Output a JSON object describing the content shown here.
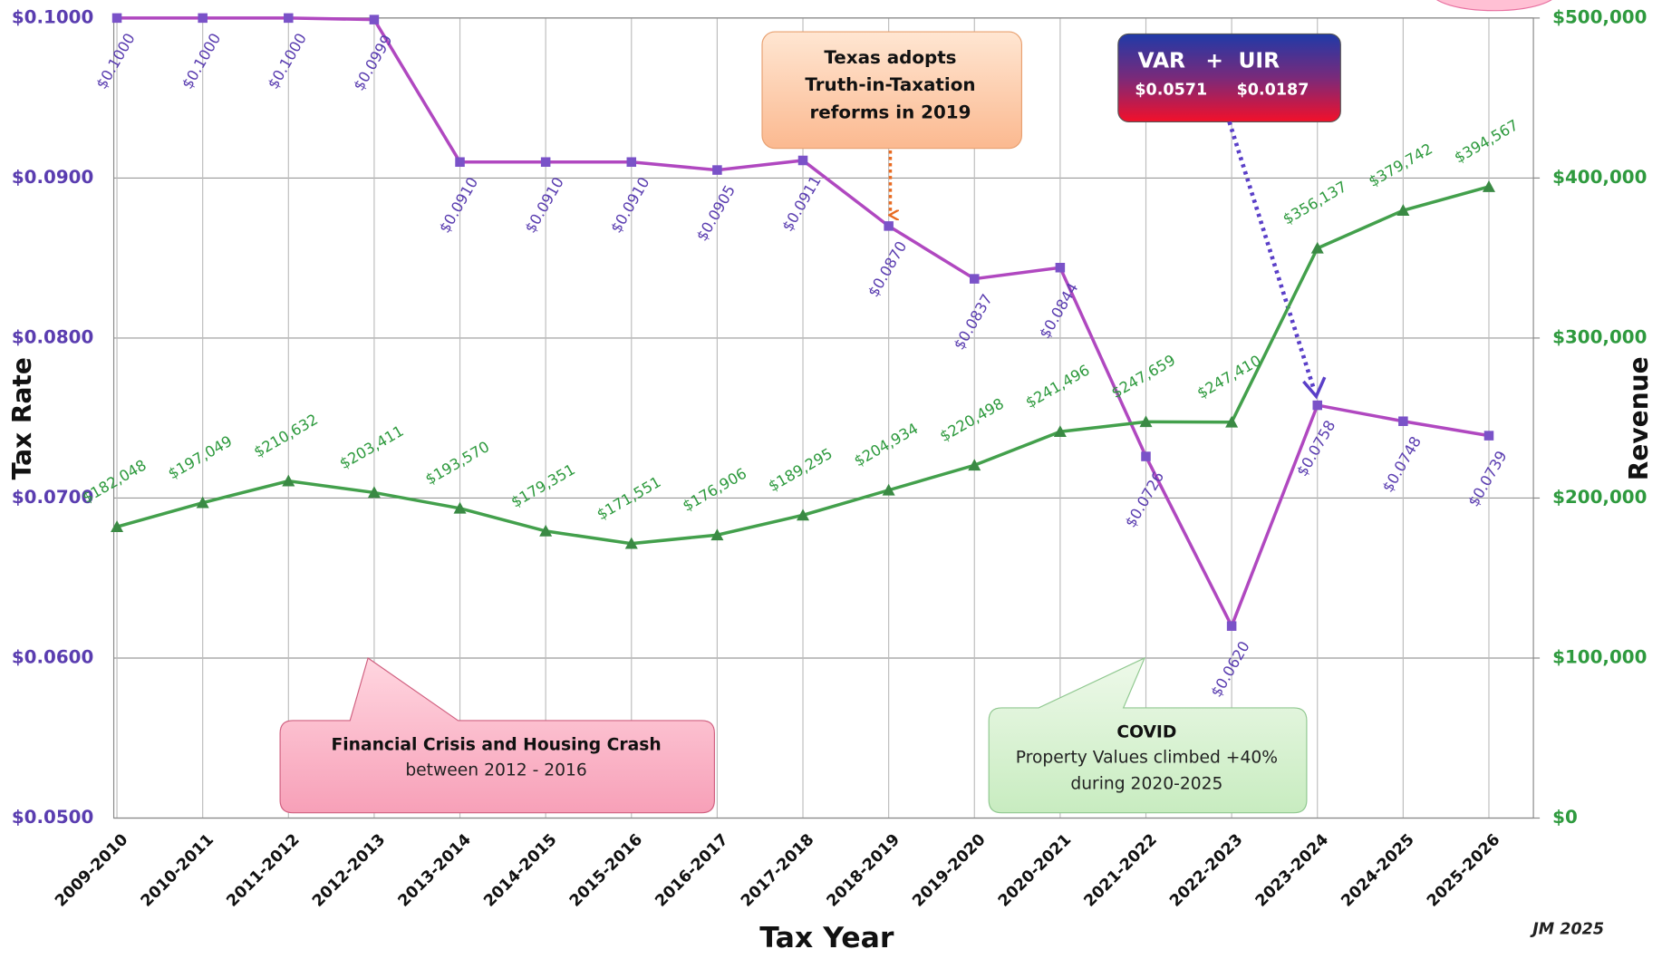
{
  "chart_data": {
    "type": "line",
    "categories": [
      "2009-2010",
      "2010-2011",
      "2011-2012",
      "2012-2013",
      "2013-2014",
      "2014-2015",
      "2015-2016",
      "2016-2017",
      "2017-2018",
      "2018-2019",
      "2019-2020",
      "2020-2021",
      "2021-2022",
      "2022-2023",
      "2023-2024",
      "2024-2025",
      "2025-2026"
    ],
    "series": [
      {
        "name": "Tax Rate",
        "color": "#b048c0",
        "marker_color": "#7a52c8",
        "label_color": "#5a3db0",
        "marker": "square",
        "values": [
          0.1,
          0.1,
          0.1,
          0.0999,
          0.091,
          0.091,
          0.091,
          0.0905,
          0.0911,
          0.087,
          0.0837,
          0.0844,
          0.0726,
          0.062,
          0.0758,
          0.0748,
          0.0739
        ],
        "value_labels": [
          "$0.1000",
          "$0.1000",
          "$0.1000",
          "$0.0999",
          "$0.0910",
          "$0.0910",
          "$0.0910",
          "$0.0905",
          "$0.0911",
          "$0.0870",
          "$0.0837",
          "$0.0844",
          "$0.0726",
          "$0.0620",
          "$0.0758",
          "$0.0748",
          "$0.0739"
        ]
      },
      {
        "name": "Revenue",
        "color": "#43a04c",
        "marker_color": "#3a8a44",
        "label_color": "#2e9a3e",
        "marker": "triangle",
        "axis": "y2",
        "values": [
          182048,
          197049,
          210632,
          203411,
          193570,
          179351,
          171551,
          176906,
          189295,
          204934,
          220498,
          241496,
          247659,
          247410,
          356137,
          379742,
          394567
        ],
        "value_labels": [
          "$182,048",
          "$197,049",
          "$210,632",
          "$203,411",
          "$193,570",
          "$179,351",
          "$171,551",
          "$176,906",
          "$189,295",
          "$204,934",
          "$220,498",
          "$241,496",
          "$247,659",
          "$247,410",
          "$356,137",
          "$379,742",
          "$394,567"
        ]
      }
    ],
    "ylim": [
      0.05,
      0.1
    ],
    "yticks": [
      {
        "value": 0.05,
        "label": "$0.0500"
      },
      {
        "value": 0.06,
        "label": "$0.0600"
      },
      {
        "value": 0.07,
        "label": "$0.0700"
      },
      {
        "value": 0.08,
        "label": "$0.0800"
      },
      {
        "value": 0.09,
        "label": "$0.0900"
      },
      {
        "value": 0.1,
        "label": "$0.1000"
      }
    ],
    "y2lim": [
      0,
      500000
    ],
    "y2ticks": [
      {
        "value": 0,
        "label": "$0"
      },
      {
        "value": 100000,
        "label": "$100,000"
      },
      {
        "value": 200000,
        "label": "$200,000"
      },
      {
        "value": 300000,
        "label": "$300,000"
      },
      {
        "value": 400000,
        "label": "$400,000"
      },
      {
        "value": 500000,
        "label": "$500,000"
      }
    ],
    "xlabel": "Tax Year",
    "ylabel": "Tax Rate",
    "y2label": "Revenue",
    "grid": true,
    "credit": "JM 2025",
    "annotations": [
      {
        "lines": [
          "Texas adopts",
          "Truth-in-Taxation",
          "reforms in 2019"
        ]
      },
      {
        "lines": [
          "VAR",
          "+",
          "UIR",
          "$0.0571",
          "$0.0187"
        ]
      },
      {
        "lines": [
          "Financial Crisis and Housing Crash",
          "between 2012 - 2016"
        ]
      },
      {
        "lines": [
          "COVID",
          "Property Values climbed +40%",
          "during 2020-2025"
        ]
      }
    ]
  }
}
